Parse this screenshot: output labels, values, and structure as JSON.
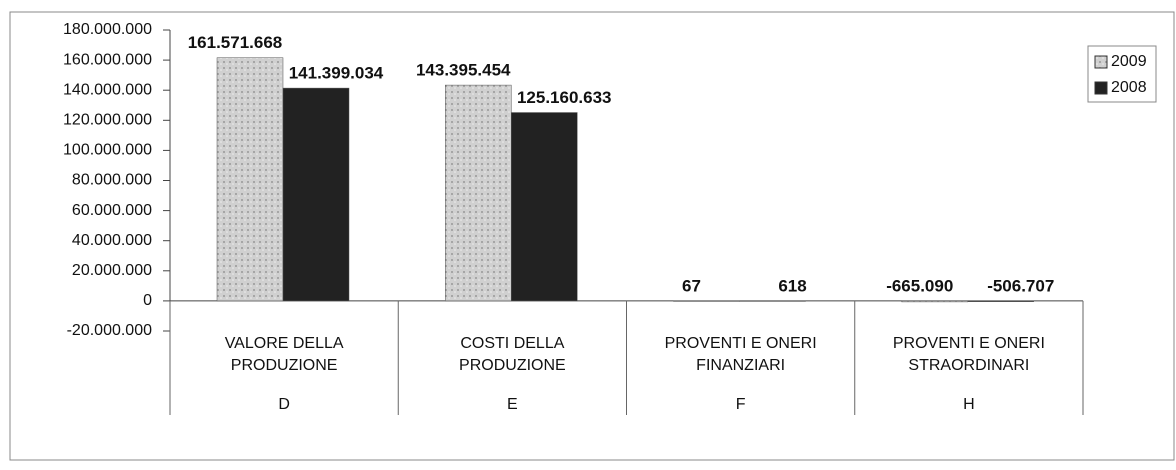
{
  "chart_data": {
    "type": "bar",
    "categories": [
      [
        "VALORE DELLA",
        "PRODUZIONE"
      ],
      [
        "COSTI DELLA",
        "PRODUZIONE"
      ],
      [
        "PROVENTI E ONERI",
        "FINANZIARI"
      ],
      [
        "PROVENTI E ONERI",
        "STRAORDINARI"
      ]
    ],
    "groups": [
      "D",
      "E",
      "F",
      "H"
    ],
    "series": [
      {
        "name": "2009",
        "color": "#c8c8c8",
        "values": [
          161571668,
          143395454,
          67,
          -665090
        ],
        "value_labels": [
          "161.571.668",
          "143.395.454",
          "67",
          "-665.090"
        ]
      },
      {
        "name": "2008",
        "color": "#222222",
        "values": [
          141399034,
          125160633,
          618,
          -506707
        ],
        "value_labels": [
          "141.399.034",
          "125.160.633",
          "618",
          "-506.707"
        ]
      }
    ],
    "ylim": [
      -20000000,
      180000000
    ],
    "yticks": [
      {
        "value": -20000000,
        "label": "-20.000.000"
      },
      {
        "value": 0,
        "label": "0"
      },
      {
        "value": 20000000,
        "label": "20.000.000"
      },
      {
        "value": 40000000,
        "label": "40.000.000"
      },
      {
        "value": 60000000,
        "label": "60.000.000"
      },
      {
        "value": 80000000,
        "label": "80.000.000"
      },
      {
        "value": 100000000,
        "label": "100.000.000"
      },
      {
        "value": 120000000,
        "label": "120.000.000"
      },
      {
        "value": 140000000,
        "label": "140.000.000"
      },
      {
        "value": 160000000,
        "label": "160.000.000"
      },
      {
        "value": 180000000,
        "label": "180.000.000"
      }
    ],
    "legend": "right"
  }
}
